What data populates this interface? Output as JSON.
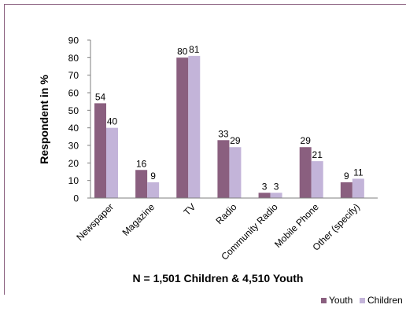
{
  "chart_data": {
    "type": "bar",
    "categories": [
      "Newspaper",
      "Magazine",
      "TV",
      "Radio",
      "Community Radio",
      "Mobile Phone",
      "Other (specify)"
    ],
    "series": [
      {
        "name": "Youth",
        "values": [
          54,
          16,
          80,
          33,
          3,
          29,
          9
        ]
      },
      {
        "name": "Children",
        "values": [
          40,
          9,
          81,
          29,
          3,
          21,
          11
        ]
      }
    ],
    "colors": [
      "#8a5f7f",
      "#c3b4d9"
    ],
    "ylabel": "Respondent in %",
    "xlabel": "N = 1,501 Children & 4,510 Youth",
    "ylim": [
      0,
      90
    ],
    "yticks": [
      0,
      10,
      20,
      30,
      40,
      50,
      60,
      70,
      80,
      90
    ],
    "grid": false,
    "legend_position": "bottom-right",
    "data_labels": true
  }
}
